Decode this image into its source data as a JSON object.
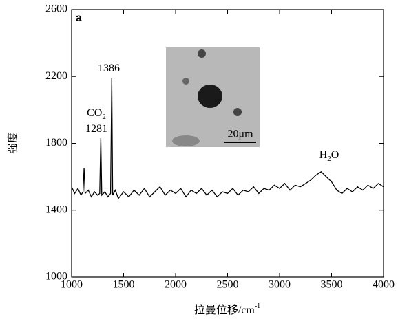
{
  "chart_data": {
    "type": "line",
    "panel_label": "a",
    "x_label": "拉曼位移/cm",
    "x_label_sup": "-1",
    "y_label": "强度",
    "xlim": [
      1000,
      4000
    ],
    "xticks": [
      1000,
      1500,
      2000,
      2500,
      3000,
      3500,
      4000
    ],
    "ylim": [
      1000,
      2600
    ],
    "yticks": [
      1000,
      1400,
      1800,
      2200,
      2600
    ],
    "annotations": [
      {
        "text": "1386"
      },
      {
        "text": "CO",
        "sub": "2"
      },
      {
        "text": "1281"
      },
      {
        "text": "H",
        "sub": "2",
        "rest": "O"
      }
    ],
    "inset_scale": "20μm",
    "series": [
      {
        "color": "#000000",
        "x": [
          1000,
          1030,
          1060,
          1090,
          1110,
          1120,
          1130,
          1160,
          1190,
          1220,
          1250,
          1270,
          1281,
          1290,
          1320,
          1350,
          1375,
          1386,
          1395,
          1420,
          1450,
          1500,
          1550,
          1600,
          1650,
          1700,
          1750,
          1800,
          1850,
          1900,
          1950,
          2000,
          2050,
          2100,
          2150,
          2200,
          2250,
          2300,
          2350,
          2400,
          2450,
          2500,
          2550,
          2600,
          2650,
          2700,
          2750,
          2800,
          2850,
          2900,
          2950,
          3000,
          3050,
          3100,
          3150,
          3200,
          3250,
          3300,
          3350,
          3400,
          3450,
          3500,
          3550,
          3600,
          3650,
          3700,
          3750,
          3800,
          3850,
          3900,
          3950,
          4000
        ],
        "values": [
          1540,
          1500,
          1530,
          1490,
          1510,
          1650,
          1500,
          1520,
          1480,
          1510,
          1490,
          1500,
          1830,
          1490,
          1510,
          1480,
          1500,
          2190,
          1490,
          1520,
          1470,
          1510,
          1480,
          1520,
          1490,
          1530,
          1480,
          1510,
          1540,
          1490,
          1520,
          1500,
          1530,
          1480,
          1520,
          1500,
          1530,
          1490,
          1520,
          1480,
          1510,
          1500,
          1530,
          1490,
          1520,
          1510,
          1540,
          1500,
          1530,
          1520,
          1550,
          1530,
          1560,
          1520,
          1550,
          1540,
          1560,
          1580,
          1610,
          1630,
          1600,
          1570,
          1520,
          1500,
          1530,
          1510,
          1540,
          1520,
          1550,
          1530,
          1560,
          1540
        ]
      }
    ]
  }
}
